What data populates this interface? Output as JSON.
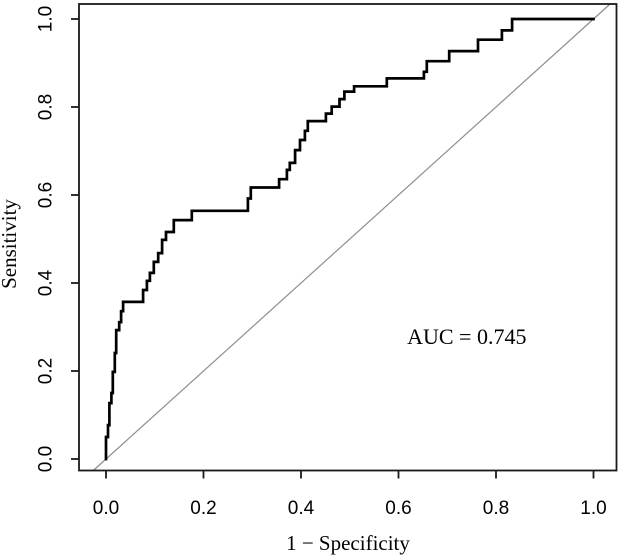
{
  "chart_data": {
    "type": "line",
    "variant": "roc-step-curve",
    "title": "",
    "xlabel": "1 − Specificity",
    "ylabel": "Sensitivity",
    "xlim": [
      0.0,
      1.0
    ],
    "ylim": [
      0.0,
      1.0
    ],
    "grid": false,
    "legend": null,
    "x_tick_values": [
      0.0,
      0.2,
      0.4,
      0.6,
      0.8,
      1.0
    ],
    "x_tick_labels": [
      "0.0",
      "0.2",
      "0.4",
      "0.6",
      "0.8",
      "1.0"
    ],
    "y_tick_values": [
      0.0,
      0.2,
      0.4,
      0.6,
      0.8,
      1.0
    ],
    "y_tick_labels": [
      "0.0",
      "0.2",
      "0.4",
      "0.6",
      "0.8",
      "1.0"
    ],
    "annotations": [
      {
        "text": "AUC = 0.745",
        "x": 0.74,
        "y": 0.277
      }
    ],
    "auc_value": 0.745,
    "reference_line": {
      "type": "diagonal",
      "from": [
        0,
        0
      ],
      "to": [
        1,
        1
      ],
      "color": "#8e8e8e",
      "line_width": 1.2
    },
    "series": [
      {
        "name": "ROC curve",
        "color": "#000000",
        "line_width": 2.7,
        "step_points": [
          [
            0.0,
            0.0
          ],
          [
            0.0,
            0.05
          ],
          [
            0.004,
            0.05
          ],
          [
            0.004,
            0.077
          ],
          [
            0.007,
            0.077
          ],
          [
            0.007,
            0.127
          ],
          [
            0.011,
            0.127
          ],
          [
            0.011,
            0.15
          ],
          [
            0.014,
            0.15
          ],
          [
            0.014,
            0.198
          ],
          [
            0.018,
            0.198
          ],
          [
            0.018,
            0.241
          ],
          [
            0.021,
            0.241
          ],
          [
            0.021,
            0.293
          ],
          [
            0.027,
            0.293
          ],
          [
            0.027,
            0.311
          ],
          [
            0.031,
            0.311
          ],
          [
            0.031,
            0.336
          ],
          [
            0.035,
            0.336
          ],
          [
            0.035,
            0.357
          ],
          [
            0.076,
            0.357
          ],
          [
            0.076,
            0.384
          ],
          [
            0.084,
            0.384
          ],
          [
            0.084,
            0.405
          ],
          [
            0.09,
            0.405
          ],
          [
            0.09,
            0.423
          ],
          [
            0.098,
            0.423
          ],
          [
            0.098,
            0.448
          ],
          [
            0.107,
            0.448
          ],
          [
            0.107,
            0.468
          ],
          [
            0.115,
            0.468
          ],
          [
            0.115,
            0.498
          ],
          [
            0.123,
            0.498
          ],
          [
            0.123,
            0.516
          ],
          [
            0.131,
            0.516
          ],
          [
            0.139,
            0.516
          ],
          [
            0.139,
            0.543
          ],
          [
            0.176,
            0.543
          ],
          [
            0.176,
            0.564
          ],
          [
            0.291,
            0.564
          ],
          [
            0.291,
            0.592
          ],
          [
            0.297,
            0.592
          ],
          [
            0.297,
            0.617
          ],
          [
            0.355,
            0.617
          ],
          [
            0.355,
            0.636
          ],
          [
            0.371,
            0.636
          ],
          [
            0.371,
            0.657
          ],
          [
            0.377,
            0.657
          ],
          [
            0.377,
            0.673
          ],
          [
            0.388,
            0.673
          ],
          [
            0.388,
            0.702
          ],
          [
            0.398,
            0.702
          ],
          [
            0.398,
            0.725
          ],
          [
            0.408,
            0.725
          ],
          [
            0.408,
            0.746
          ],
          [
            0.414,
            0.746
          ],
          [
            0.414,
            0.768
          ],
          [
            0.451,
            0.768
          ],
          [
            0.451,
            0.785
          ],
          [
            0.463,
            0.785
          ],
          [
            0.463,
            0.801
          ],
          [
            0.479,
            0.801
          ],
          [
            0.479,
            0.818
          ],
          [
            0.489,
            0.818
          ],
          [
            0.489,
            0.835
          ],
          [
            0.509,
            0.835
          ],
          [
            0.509,
            0.847
          ],
          [
            0.576,
            0.847
          ],
          [
            0.576,
            0.865
          ],
          [
            0.652,
            0.865
          ],
          [
            0.652,
            0.88
          ],
          [
            0.658,
            0.88
          ],
          [
            0.658,
            0.904
          ],
          [
            0.704,
            0.904
          ],
          [
            0.704,
            0.927
          ],
          [
            0.763,
            0.927
          ],
          [
            0.763,
            0.953
          ],
          [
            0.812,
            0.953
          ],
          [
            0.812,
            0.974
          ],
          [
            0.833,
            0.974
          ],
          [
            0.833,
            1.0
          ],
          [
            1.0,
            1.0
          ]
        ]
      }
    ],
    "style": {
      "background": "#ffffff",
      "axis_color": "#1a1a1a",
      "text_color": "#000000",
      "curve_color": "#000000",
      "diagonal_color": "#8e8e8e"
    }
  }
}
